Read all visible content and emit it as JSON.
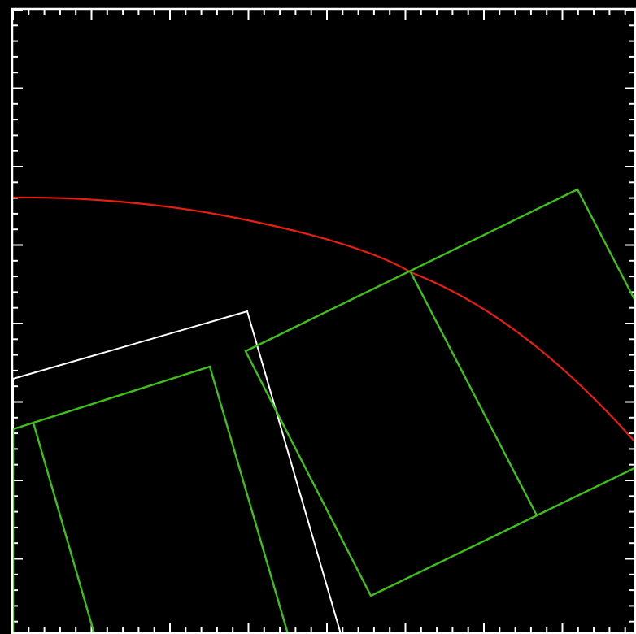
{
  "colors": {
    "background": "#000000",
    "frame": "#ffffff",
    "ticks": "#ffffff",
    "arc": "#e81e10",
    "green_shapes": "#3fbf1a",
    "white_shape": "#ffffff"
  }
}
